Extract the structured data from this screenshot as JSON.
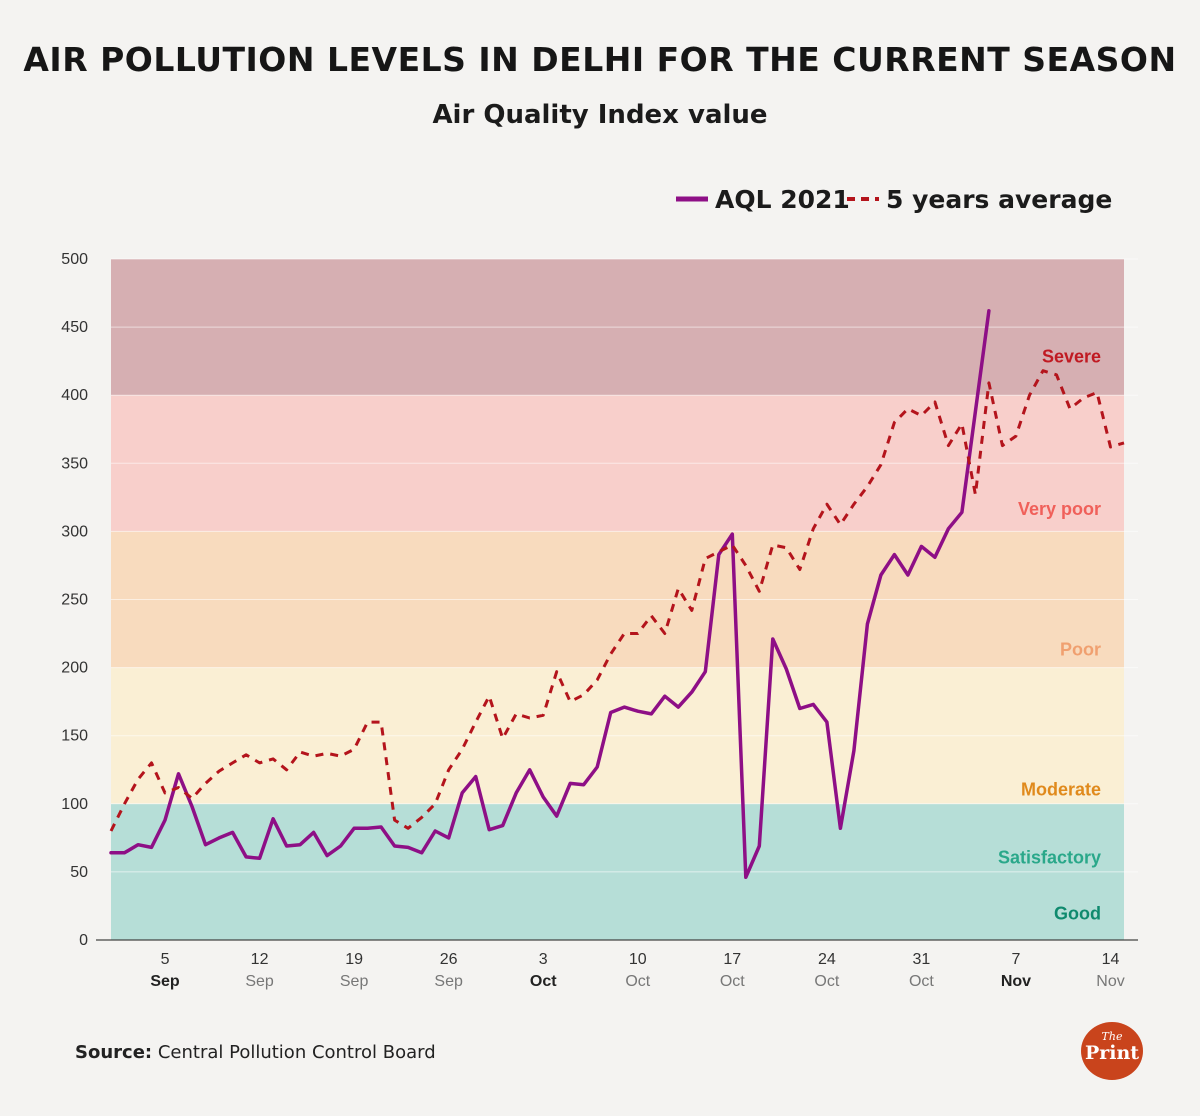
{
  "header": {
    "title": "AIR POLLUTION LEVELS IN DELHI FOR THE CURRENT SEASON",
    "subtitle": "Air Quality Index value"
  },
  "footer": {
    "source_label": "Source:",
    "source_text": "Central Pollution Control Board",
    "logo_top": "The",
    "logo_bottom": "Print"
  },
  "colors": {
    "aqi_line": "#8e0f86",
    "avg_line": "#b4141c",
    "good": "#b6ded7",
    "satisfactory": "#b6ded7",
    "moderate": "#faefd4",
    "poor": "#f8dbbe",
    "very_poor": "#f8cfcb",
    "severe": "#d6afb2"
  },
  "chart_data": {
    "type": "line",
    "title": "Air Quality Index value",
    "ylabel": "",
    "xlabel": "",
    "ylim": [
      0,
      500
    ],
    "yticks": [
      0,
      50,
      100,
      150,
      200,
      250,
      300,
      350,
      400,
      450,
      500
    ],
    "x_start_date": "1 Sep",
    "x_ticks": [
      {
        "day": 5,
        "label": "5",
        "month": "Sep"
      },
      {
        "day": 12,
        "label": "12",
        "month": "Sep"
      },
      {
        "day": 19,
        "label": "19",
        "month": "Sep"
      },
      {
        "day": 26,
        "label": "26",
        "month": "Sep"
      },
      {
        "day": 33,
        "label": "3",
        "month": "Oct"
      },
      {
        "day": 40,
        "label": "10",
        "month": "Oct"
      },
      {
        "day": 47,
        "label": "17",
        "month": "Oct"
      },
      {
        "day": 54,
        "label": "24",
        "month": "Oct"
      },
      {
        "day": 61,
        "label": "31",
        "month": "Oct"
      },
      {
        "day": 68,
        "label": "7",
        "month": "Nov"
      },
      {
        "day": 75,
        "label": "14",
        "month": "Nov"
      }
    ],
    "xlim": [
      1,
      76
    ],
    "bands": [
      {
        "name": "Good",
        "from": 0,
        "to": 50,
        "label_value": 15,
        "label_color": "#0f8a6e",
        "color": "#b6ded7"
      },
      {
        "name": "Satisfactory",
        "from": 50,
        "to": 100,
        "label_value": 56,
        "label_color": "#2aa88a",
        "color": "#b6ded7"
      },
      {
        "name": "Moderate",
        "from": 100,
        "to": 200,
        "label_value": 106,
        "label_color": "#e08a1c",
        "color": "#faefd4"
      },
      {
        "name": "Poor",
        "from": 200,
        "to": 300,
        "label_value": 209,
        "label_color": "#f0a070",
        "color": "#f8dbbe"
      },
      {
        "name": "Very poor",
        "from": 300,
        "to": 400,
        "label_value": 312,
        "label_color": "#f0605a",
        "color": "#f8cfcb"
      },
      {
        "name": "Severe",
        "from": 400,
        "to": 500,
        "label_value": 424,
        "label_color": "#c01a22",
        "color": "#d6afb2"
      }
    ],
    "legend_position": "top-right",
    "series": [
      {
        "name": "AQL 2021",
        "style": "solid",
        "color": "#8e0f86",
        "x": [
          1,
          2,
          3,
          4,
          5,
          6,
          7,
          8,
          9,
          10,
          11,
          12,
          13,
          14,
          15,
          16,
          17,
          18,
          19,
          20,
          21,
          22,
          23,
          24,
          25,
          26,
          27,
          28,
          29,
          30,
          31,
          32,
          33,
          34,
          35,
          36,
          37,
          38,
          39,
          40,
          41,
          42,
          43,
          44,
          45,
          46,
          47,
          48,
          49,
          50,
          51,
          52,
          53,
          54,
          55,
          56,
          57,
          58,
          59,
          60,
          61,
          62,
          63,
          64,
          65,
          66,
          67
        ],
        "values": [
          64,
          64,
          70,
          68,
          88,
          122,
          98,
          70,
          75,
          79,
          61,
          60,
          89,
          69,
          70,
          79,
          62,
          69,
          82,
          82,
          83,
          69,
          68,
          64,
          80,
          75,
          108,
          120,
          81,
          84,
          108,
          125,
          105,
          91,
          115,
          114,
          127,
          167,
          171,
          168,
          166,
          179,
          171,
          182,
          197,
          283,
          298,
          46,
          69,
          221,
          199,
          170,
          173,
          160,
          82,
          139,
          232,
          268,
          283,
          268,
          289,
          281,
          302,
          314,
          388,
          462,
          null
        ]
      },
      {
        "name": "5 years average",
        "style": "dashed",
        "color": "#b4141c",
        "x": [
          1,
          2,
          3,
          4,
          5,
          6,
          7,
          8,
          9,
          10,
          11,
          12,
          13,
          14,
          15,
          16,
          17,
          18,
          19,
          20,
          21,
          22,
          23,
          24,
          25,
          26,
          27,
          28,
          29,
          30,
          31,
          32,
          33,
          34,
          35,
          36,
          37,
          38,
          39,
          40,
          41,
          42,
          43,
          44,
          45,
          46,
          47,
          48,
          49,
          50,
          51,
          52,
          53,
          54,
          55,
          56,
          57,
          58,
          59,
          60,
          61,
          62,
          63,
          64,
          65,
          66,
          67,
          68,
          69,
          70,
          71,
          72,
          73,
          74,
          75,
          76
        ],
        "values": [
          80,
          100,
          118,
          130,
          108,
          112,
          104,
          115,
          124,
          130,
          136,
          130,
          133,
          125,
          138,
          135,
          137,
          135,
          140,
          160,
          160,
          88,
          82,
          90,
          100,
          125,
          140,
          160,
          179,
          148,
          166,
          163,
          165,
          197,
          175,
          180,
          191,
          210,
          225,
          225,
          238,
          225,
          258,
          242,
          280,
          285,
          290,
          275,
          256,
          290,
          288,
          272,
          302,
          320,
          305,
          320,
          333,
          349,
          380,
          390,
          385,
          395,
          363,
          379,
          327,
          409,
          363,
          370,
          400,
          418,
          415,
          390,
          398,
          402,
          362,
          365
        ]
      }
    ]
  }
}
